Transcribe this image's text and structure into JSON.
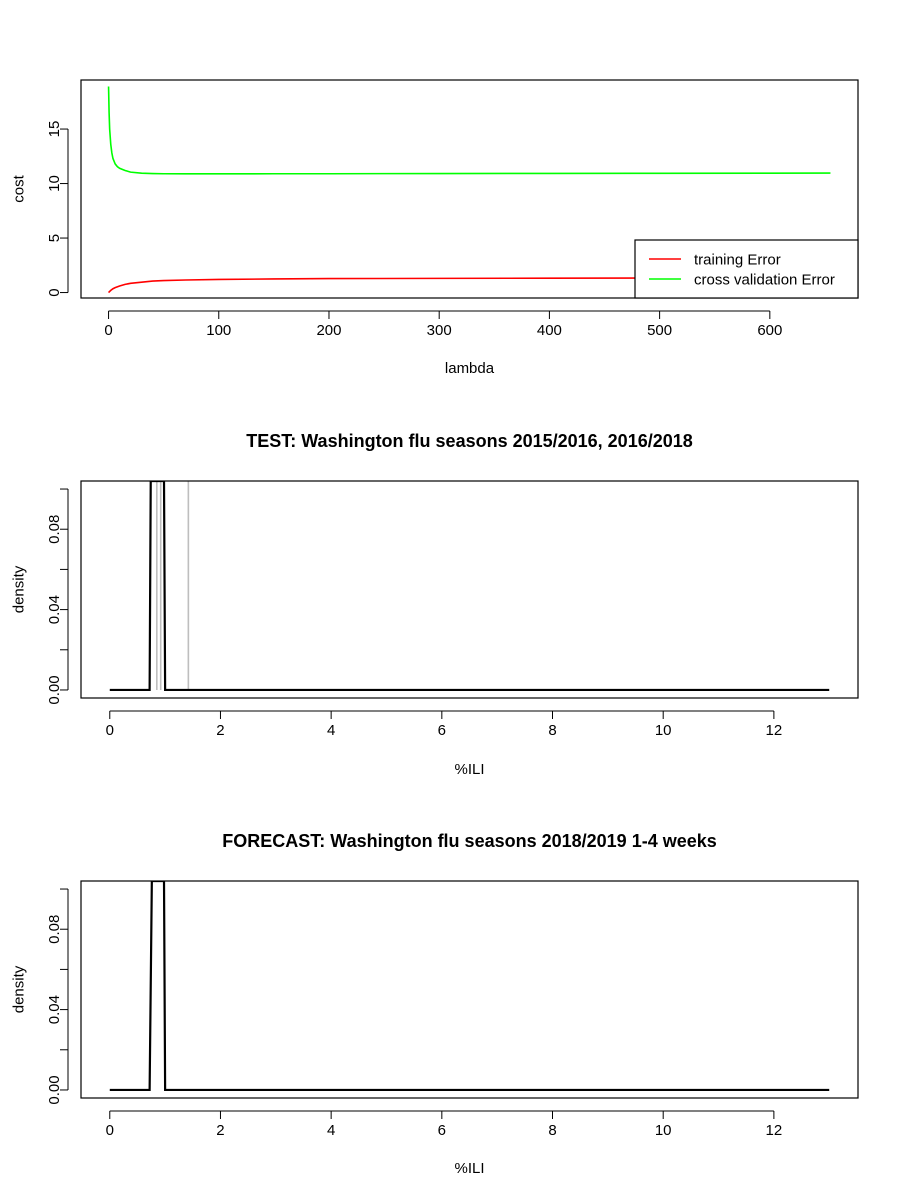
{
  "chart_data": [
    {
      "type": "line",
      "title": "",
      "xlabel": "lambda",
      "ylabel": "cost",
      "xlim": [
        -25,
        680
      ],
      "ylim": [
        -0.5,
        19.5
      ],
      "xticks": [
        0,
        100,
        200,
        300,
        400,
        500,
        600
      ],
      "xtick_labels": [
        "0",
        "100",
        "200",
        "300",
        "400",
        "500",
        "600"
      ],
      "yticks": [
        0,
        5,
        10,
        15
      ],
      "ytick_labels": [
        "0",
        "5",
        "10",
        "15"
      ],
      "legend": {
        "placement": "bottom-right",
        "entries": [
          "training Error",
          "cross validation Error"
        ]
      },
      "series": [
        {
          "name": "training Error",
          "color": "#ff0000",
          "x": [
            0,
            1,
            2,
            4,
            6,
            10,
            15,
            20,
            30,
            40,
            50,
            70,
            100,
            150,
            200,
            300,
            400,
            500,
            600,
            655
          ],
          "y": [
            0.0,
            0.1,
            0.2,
            0.35,
            0.45,
            0.6,
            0.75,
            0.85,
            0.95,
            1.05,
            1.1,
            1.15,
            1.2,
            1.25,
            1.28,
            1.3,
            1.32,
            1.33,
            1.34,
            1.35
          ]
        },
        {
          "name": "cross validation Error",
          "color": "#00ff00",
          "x": [
            0,
            0.5,
            1,
            2,
            3,
            4,
            6,
            8,
            10,
            15,
            20,
            30,
            40,
            50,
            70,
            100,
            150,
            200,
            300,
            400,
            500,
            600,
            655
          ],
          "y": [
            18.9,
            16.5,
            15.0,
            13.6,
            12.8,
            12.3,
            11.8,
            11.55,
            11.4,
            11.2,
            11.05,
            10.95,
            10.92,
            10.9,
            10.89,
            10.89,
            10.9,
            10.9,
            10.92,
            10.93,
            10.94,
            10.95,
            10.96
          ]
        }
      ]
    },
    {
      "type": "line",
      "title": "TEST: Washington  flu seasons 2015/2016, 2016/2018",
      "xlabel": "%ILI",
      "ylabel": "density",
      "xlim": [
        -0.52,
        13.52
      ],
      "ylim": [
        -0.004,
        0.104
      ],
      "xticks": [
        0,
        2,
        4,
        6,
        8,
        10,
        12
      ],
      "xtick_labels": [
        "0",
        "2",
        "4",
        "6",
        "8",
        "10",
        "12"
      ],
      "yticks": [
        0.0,
        0.02,
        0.04,
        0.06,
        0.08,
        0.1
      ],
      "ytick_labels": [
        "0.00",
        "",
        "0.04",
        "",
        "0.08",
        ""
      ],
      "series": [
        {
          "color": "#bebebe",
          "x": [
            0.85,
            0.85
          ],
          "y": [
            0,
            0.104
          ]
        },
        {
          "color": "#bebebe",
          "x": [
            0.92,
            0.92
          ],
          "y": [
            0,
            0.104
          ]
        },
        {
          "color": "#bebebe",
          "x": [
            1.42,
            1.42
          ],
          "y": [
            0,
            0.104
          ]
        },
        {
          "color": "#000000",
          "x": [
            0,
            0.72,
            0.74,
            0.98,
            1.0,
            13
          ],
          "y": [
            0,
            0,
            0.104,
            0.104,
            0,
            0
          ]
        }
      ]
    },
    {
      "type": "line",
      "title": "FORECAST: Washington flu seasons 2018/2019 1-4 weeks",
      "xlabel": "%ILI",
      "ylabel": "density",
      "xlim": [
        -0.52,
        13.52
      ],
      "ylim": [
        -0.004,
        0.104
      ],
      "xticks": [
        0,
        2,
        4,
        6,
        8,
        10,
        12
      ],
      "xtick_labels": [
        "0",
        "2",
        "4",
        "6",
        "8",
        "10",
        "12"
      ],
      "yticks": [
        0.0,
        0.02,
        0.04,
        0.06,
        0.08,
        0.1
      ],
      "ytick_labels": [
        "0.00",
        "",
        "0.04",
        "",
        "0.08",
        ""
      ],
      "series": [
        {
          "color": "#000000",
          "x": [
            0,
            0.72,
            0.76,
            0.98,
            1.0,
            13
          ],
          "y": [
            0,
            0,
            0.104,
            0.104,
            0,
            0
          ]
        }
      ]
    }
  ]
}
